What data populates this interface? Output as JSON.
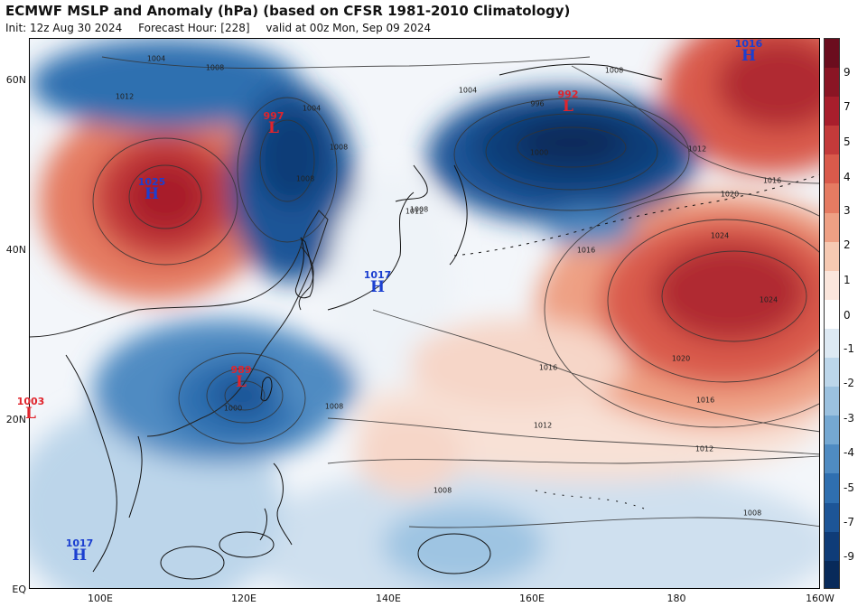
{
  "header": {
    "title": "ECMWF MSLP and Anomaly (hPa) (based on CFSR 1981-2010 Climatology)",
    "init": "Init: 12z Aug 30 2024",
    "forecast_hour": "Forecast Hour: [228]",
    "valid": "valid at 00z Mon, Sep 09 2024"
  },
  "axes": {
    "lat_labels": [
      "60N",
      "40N",
      "20N",
      "EQ"
    ],
    "lon_labels": [
      "100E",
      "120E",
      "140E",
      "160E",
      "180",
      "160W"
    ]
  },
  "colorbar": {
    "labels": [
      "9",
      "7",
      "5",
      "4",
      "3",
      "2",
      "1",
      "0",
      "-1",
      "-2",
      "-3",
      "-4",
      "-5",
      "-7",
      "-9"
    ],
    "colors": [
      "#6b0d1e",
      "#8a1524",
      "#a81e2c",
      "#c33a3a",
      "#d95a4b",
      "#e57b62",
      "#eea084",
      "#f6c9b2",
      "#fbe6dc",
      "#ffffff",
      "#dde9f3",
      "#bcd6ea",
      "#9bc1df",
      "#75a8d2",
      "#4f8bc2",
      "#2f6fb0",
      "#1d5597",
      "#0f3c78",
      "#082a5a"
    ]
  },
  "pressure_centers": [
    {
      "kind": "H",
      "value": "1025",
      "color": "#1b3fd0"
    },
    {
      "kind": "L",
      "value": "997",
      "color": "#e0242c"
    },
    {
      "kind": "L",
      "value": "992",
      "color": "#e0242c"
    },
    {
      "kind": "H",
      "value": "1016",
      "color": "#1b3fd0"
    },
    {
      "kind": "H",
      "value": "1017",
      "color": "#1b3fd0"
    },
    {
      "kind": "L",
      "value": "989",
      "color": "#e0242c"
    },
    {
      "kind": "L",
      "value": "1003",
      "color": "#e0242c"
    },
    {
      "kind": "H",
      "value": "1017",
      "color": "#1b3fd0"
    }
  ],
  "isobar_labels": [
    "1004",
    "1008",
    "1012",
    "1004",
    "1008",
    "1012",
    "1016",
    "1020",
    "1024",
    "1024",
    "1020",
    "1016",
    "1016",
    "1012",
    "1012",
    "1008",
    "1008",
    "1008",
    "1000",
    "1008",
    "1004",
    "1008",
    "1008",
    "1012",
    "1016",
    "996",
    "1000"
  ]
}
